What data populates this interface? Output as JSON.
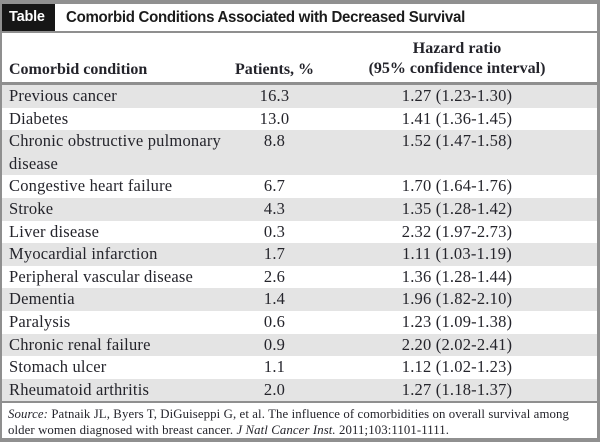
{
  "title_bar": {
    "tab_label": "Table",
    "title": "Comorbid Conditions Associated with Decreased Survival"
  },
  "columns": {
    "condition": "Comorbid condition",
    "patients": "Patients, %",
    "hazard_line1": "Hazard ratio",
    "hazard_line2": "(95% confidence interval)"
  },
  "rows": [
    {
      "condition": "Previous cancer",
      "patients": "16.3",
      "hazard": "1.27 (1.23-1.30)"
    },
    {
      "condition": "Diabetes",
      "patients": "13.0",
      "hazard": "1.41 (1.36-1.45)"
    },
    {
      "condition": "Chronic obstructive pulmonary disease",
      "patients": "8.8",
      "hazard": "1.52 (1.47-1.58)"
    },
    {
      "condition": "Congestive heart failure",
      "patients": "6.7",
      "hazard": "1.70 (1.64-1.76)"
    },
    {
      "condition": "Stroke",
      "patients": "4.3",
      "hazard": "1.35 (1.28-1.42)"
    },
    {
      "condition": "Liver disease",
      "patients": "0.3",
      "hazard": "2.32 (1.97-2.73)"
    },
    {
      "condition": "Myocardial infarction",
      "patients": "1.7",
      "hazard": "1.11 (1.03-1.19)"
    },
    {
      "condition": "Peripheral vascular disease",
      "patients": "2.6",
      "hazard": "1.36 (1.28-1.44)"
    },
    {
      "condition": "Dementia",
      "patients": "1.4",
      "hazard": "1.96 (1.82-2.10)"
    },
    {
      "condition": "Paralysis",
      "patients": "0.6",
      "hazard": "1.23 (1.09-1.38)"
    },
    {
      "condition": "Chronic renal failure",
      "patients": "0.9",
      "hazard": "2.20 (2.02-2.41)"
    },
    {
      "condition": "Stomach ulcer",
      "patients": "1.1",
      "hazard": "1.12 (1.02-1.23)"
    },
    {
      "condition": "Rheumatoid arthritis",
      "patients": "2.0",
      "hazard": "1.27 (1.18-1.37)"
    }
  ],
  "source": {
    "label": "Source:",
    "text_before_journal": " Patnaik JL, Byers T, DiGuiseppi G, et al. The influence of comorbidities on overall survival among older women diagnosed with breast cancer. ",
    "journal": "J Natl Cancer Inst.",
    "text_after_journal": " 2011;103:1101-1111."
  },
  "colors": {
    "stripe": "#e4e4e4",
    "border": "#8f8f8f",
    "text": "#24242b",
    "tab_background": "#161616",
    "tab_text": "#ffffff"
  }
}
